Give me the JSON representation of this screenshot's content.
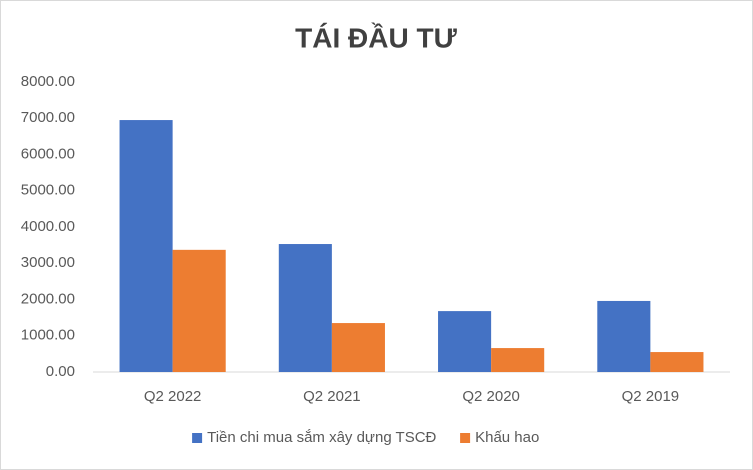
{
  "chart_data": {
    "type": "bar",
    "title": "TÁI ĐẦU TƯ",
    "categories": [
      "Q2 2022",
      "Q2 2021",
      "Q2 2020",
      "Q2 2019"
    ],
    "series": [
      {
        "name": "Tiền chi mua sắm xây dựng TSCĐ",
        "color": "#4472c4",
        "values": [
          6950,
          3530,
          1680,
          1960
        ]
      },
      {
        "name": "Khấu hao",
        "color": "#ed7d31",
        "values": [
          3370,
          1350,
          660,
          550
        ]
      }
    ],
    "ylim": [
      0,
      8000
    ],
    "yticks": [
      {
        "value": 0,
        "label": "0.00"
      },
      {
        "value": 1000,
        "label": "1000.00"
      },
      {
        "value": 2000,
        "label": "2000.00"
      },
      {
        "value": 3000,
        "label": "3000.00"
      },
      {
        "value": 4000,
        "label": "4000.00"
      },
      {
        "value": 5000,
        "label": "5000.00"
      },
      {
        "value": 6000,
        "label": "6000.00"
      },
      {
        "value": 7000,
        "label": "7000.00"
      },
      {
        "value": 8000,
        "label": "8000.00"
      }
    ],
    "grid": false,
    "legend": "bottom"
  }
}
